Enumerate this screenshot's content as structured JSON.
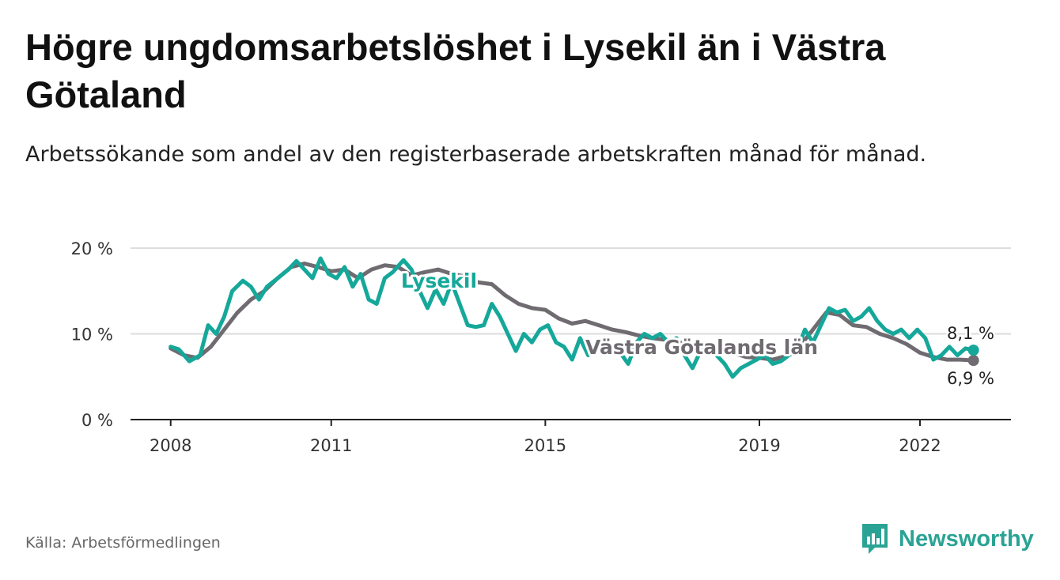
{
  "title": "Högre ungdomsarbetslöshet i Lysekil än i Västra Götaland",
  "subtitle": "Arbetssökande som andel av den registerbaserade arbetskraften månad för månad.",
  "source": "Källa: Arbetsförmedlingen",
  "brand": "Newsworthy",
  "colors": {
    "lysekil": "#15a89a",
    "vg": "#6f6b70",
    "grid": "#dddddd",
    "axis": "#222222",
    "brand": "#2aa394"
  },
  "chart_data": {
    "type": "line",
    "title": "Högre ungdomsarbetslöshet i Lysekil än i Västra Götaland",
    "xlabel": "",
    "ylabel": "",
    "xlim": [
      2007.25,
      2023.7
    ],
    "ylim": [
      0,
      20
    ],
    "x_ticks": [
      2008,
      2011,
      2015,
      2019,
      2022
    ],
    "x_tick_labels": [
      "2008",
      "2011",
      "2015",
      "2019",
      "2022"
    ],
    "y_ticks": [
      0,
      10,
      20
    ],
    "y_tick_labels": [
      "0 %",
      "10 %",
      "20 %"
    ],
    "series": [
      {
        "name": "Västra Götalands län",
        "label": "Västra Götalands län",
        "end_label": "6,9 %",
        "points": [
          [
            2008.0,
            8.3
          ],
          [
            2008.25,
            7.5
          ],
          [
            2008.5,
            7.2
          ],
          [
            2008.75,
            8.5
          ],
          [
            2009.0,
            10.5
          ],
          [
            2009.25,
            12.5
          ],
          [
            2009.5,
            14.0
          ],
          [
            2009.75,
            15.0
          ],
          [
            2010.0,
            16.5
          ],
          [
            2010.25,
            17.8
          ],
          [
            2010.5,
            18.2
          ],
          [
            2010.75,
            17.8
          ],
          [
            2011.0,
            17.3
          ],
          [
            2011.25,
            17.5
          ],
          [
            2011.5,
            16.5
          ],
          [
            2011.75,
            17.5
          ],
          [
            2012.0,
            18.0
          ],
          [
            2012.25,
            17.8
          ],
          [
            2012.5,
            16.8
          ],
          [
            2012.75,
            17.2
          ],
          [
            2013.0,
            17.5
          ],
          [
            2013.25,
            17.0
          ],
          [
            2013.5,
            16.7
          ],
          [
            2013.75,
            16.0
          ],
          [
            2014.0,
            15.8
          ],
          [
            2014.25,
            14.5
          ],
          [
            2014.5,
            13.5
          ],
          [
            2014.75,
            13.0
          ],
          [
            2015.0,
            12.8
          ],
          [
            2015.25,
            11.8
          ],
          [
            2015.5,
            11.2
          ],
          [
            2015.75,
            11.5
          ],
          [
            2016.0,
            11.0
          ],
          [
            2016.25,
            10.5
          ],
          [
            2016.5,
            10.2
          ],
          [
            2016.75,
            9.8
          ],
          [
            2017.0,
            9.5
          ],
          [
            2017.25,
            9.3
          ],
          [
            2017.5,
            9.0
          ],
          [
            2017.75,
            8.7
          ],
          [
            2018.0,
            8.3
          ],
          [
            2018.25,
            8.0
          ],
          [
            2018.5,
            7.8
          ],
          [
            2018.75,
            7.3
          ],
          [
            2019.0,
            7.2
          ],
          [
            2019.25,
            7.0
          ],
          [
            2019.5,
            7.4
          ],
          [
            2019.75,
            8.5
          ],
          [
            2020.0,
            10.5
          ],
          [
            2020.25,
            12.5
          ],
          [
            2020.5,
            12.2
          ],
          [
            2020.75,
            11.0
          ],
          [
            2021.0,
            10.8
          ],
          [
            2021.25,
            10.0
          ],
          [
            2021.5,
            9.5
          ],
          [
            2021.75,
            8.8
          ],
          [
            2022.0,
            7.8
          ],
          [
            2022.25,
            7.3
          ],
          [
            2022.5,
            7.0
          ],
          [
            2022.75,
            7.0
          ],
          [
            2023.0,
            6.9
          ]
        ]
      },
      {
        "name": "Lysekil",
        "label": "Lysekil",
        "end_label": "8,1 %",
        "points": [
          [
            2008.0,
            8.5
          ],
          [
            2008.15,
            8.2
          ],
          [
            2008.35,
            6.8
          ],
          [
            2008.55,
            7.5
          ],
          [
            2008.7,
            11.0
          ],
          [
            2008.85,
            10.0
          ],
          [
            2009.0,
            12.0
          ],
          [
            2009.15,
            15.0
          ],
          [
            2009.35,
            16.2
          ],
          [
            2009.5,
            15.5
          ],
          [
            2009.65,
            14.0
          ],
          [
            2009.8,
            15.5
          ],
          [
            2010.0,
            16.5
          ],
          [
            2010.2,
            17.5
          ],
          [
            2010.35,
            18.5
          ],
          [
            2010.5,
            17.5
          ],
          [
            2010.65,
            16.5
          ],
          [
            2010.8,
            18.8
          ],
          [
            2010.95,
            17.0
          ],
          [
            2011.1,
            16.5
          ],
          [
            2011.25,
            17.8
          ],
          [
            2011.4,
            15.5
          ],
          [
            2011.55,
            17.0
          ],
          [
            2011.7,
            14.0
          ],
          [
            2011.85,
            13.5
          ],
          [
            2012.0,
            16.5
          ],
          [
            2012.15,
            17.2
          ],
          [
            2012.35,
            18.6
          ],
          [
            2012.5,
            17.5
          ],
          [
            2012.65,
            15.0
          ],
          [
            2012.8,
            13.0
          ],
          [
            2012.95,
            15.2
          ],
          [
            2013.1,
            13.5
          ],
          [
            2013.25,
            16.0
          ],
          [
            2013.4,
            13.5
          ],
          [
            2013.55,
            11.0
          ],
          [
            2013.7,
            10.8
          ],
          [
            2013.85,
            11.0
          ],
          [
            2014.0,
            13.5
          ],
          [
            2014.15,
            12.0
          ],
          [
            2014.3,
            10.0
          ],
          [
            2014.45,
            8.0
          ],
          [
            2014.6,
            10.0
          ],
          [
            2014.75,
            9.0
          ],
          [
            2014.9,
            10.5
          ],
          [
            2015.05,
            11.0
          ],
          [
            2015.2,
            9.0
          ],
          [
            2015.35,
            8.5
          ],
          [
            2015.5,
            7.0
          ],
          [
            2015.65,
            9.5
          ],
          [
            2015.8,
            7.5
          ],
          [
            2015.95,
            9.0
          ],
          [
            2016.1,
            9.5
          ],
          [
            2016.25,
            8.5
          ],
          [
            2016.4,
            7.8
          ],
          [
            2016.55,
            6.5
          ],
          [
            2016.7,
            9.0
          ],
          [
            2016.85,
            10.0
          ],
          [
            2017.0,
            9.5
          ],
          [
            2017.15,
            10.0
          ],
          [
            2017.3,
            9.0
          ],
          [
            2017.45,
            9.5
          ],
          [
            2017.6,
            7.5
          ],
          [
            2017.75,
            6.0
          ],
          [
            2017.9,
            8.0
          ],
          [
            2018.05,
            8.5
          ],
          [
            2018.2,
            7.5
          ],
          [
            2018.35,
            6.5
          ],
          [
            2018.5,
            5.0
          ],
          [
            2018.65,
            6.0
          ],
          [
            2018.8,
            6.5
          ],
          [
            2018.95,
            7.0
          ],
          [
            2019.1,
            7.5
          ],
          [
            2019.25,
            6.5
          ],
          [
            2019.4,
            6.8
          ],
          [
            2019.55,
            7.5
          ],
          [
            2019.7,
            8.0
          ],
          [
            2019.85,
            10.5
          ],
          [
            2020.0,
            9.0
          ],
          [
            2020.15,
            11.0
          ],
          [
            2020.3,
            13.0
          ],
          [
            2020.45,
            12.5
          ],
          [
            2020.6,
            12.8
          ],
          [
            2020.75,
            11.5
          ],
          [
            2020.9,
            12.0
          ],
          [
            2021.05,
            13.0
          ],
          [
            2021.2,
            11.5
          ],
          [
            2021.35,
            10.5
          ],
          [
            2021.5,
            10.0
          ],
          [
            2021.65,
            10.5
          ],
          [
            2021.8,
            9.5
          ],
          [
            2021.95,
            10.5
          ],
          [
            2022.1,
            9.5
          ],
          [
            2022.25,
            7.0
          ],
          [
            2022.4,
            7.5
          ],
          [
            2022.55,
            8.5
          ],
          [
            2022.7,
            7.5
          ],
          [
            2022.85,
            8.3
          ],
          [
            2023.0,
            8.1
          ]
        ]
      }
    ]
  }
}
